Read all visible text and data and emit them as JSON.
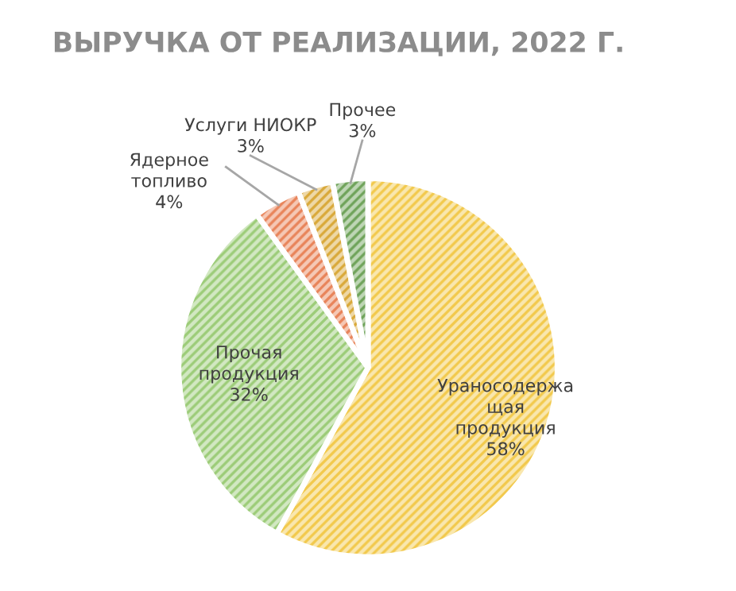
{
  "chart_data": {
    "type": "pie",
    "title": "ВЫРУЧКА ОТ РЕАЛИЗАЦИИ, 2022 Г.",
    "categories": [
      "Ураносодержащая продукция",
      "Прочая продукция",
      "Ядерное топливо",
      "Услуги НИОКР",
      "Прочее"
    ],
    "values": [
      58,
      32,
      4,
      3,
      3
    ],
    "colors": [
      "#f2c94c",
      "#9ccc78",
      "#e8845a",
      "#d9a93a",
      "#6fa35a"
    ],
    "value_labels": [
      "58%",
      "32%",
      "4%",
      "3%",
      "3%"
    ],
    "legend": false
  }
}
